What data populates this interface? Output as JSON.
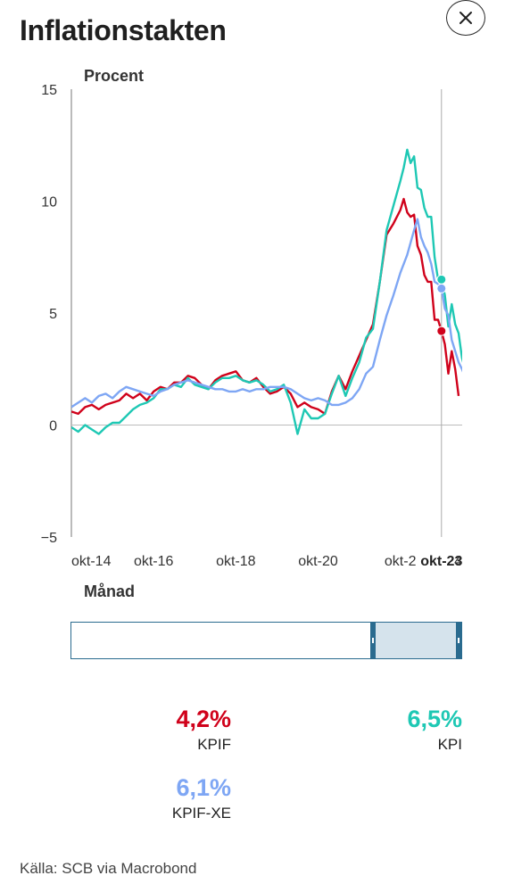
{
  "header": {
    "title": "Inflationstakten",
    "close_icon": "close-icon"
  },
  "chart_data": {
    "type": "line",
    "ylabel": "Procent",
    "xlabel": "Månad",
    "ylim": [
      -5,
      15
    ],
    "yticks": [
      15,
      10,
      5,
      0,
      -5
    ],
    "x_start": "2014-10",
    "x_end": "2024-03",
    "xticks": [
      {
        "label": "okt-14",
        "date": "2014-10",
        "bold": false
      },
      {
        "label": "okt-16",
        "date": "2016-10",
        "bold": false
      },
      {
        "label": "okt-18",
        "date": "2018-10",
        "bold": false
      },
      {
        "label": "okt-20",
        "date": "2020-10",
        "bold": false
      },
      {
        "label": "okt-2",
        "date": "2022-10",
        "bold": false
      },
      {
        "label": "okt-23",
        "date": "2023-10",
        "bold": true
      },
      {
        "label": "4",
        "date": "2024-03",
        "bold": false
      }
    ],
    "crosshair_date": "2023-10",
    "grid": false,
    "series": [
      {
        "name": "KPIF",
        "color": "#d0021b",
        "points": [
          [
            "2014-10",
            0.6
          ],
          [
            "2014-12",
            0.5
          ],
          [
            "2015-02",
            0.8
          ],
          [
            "2015-04",
            0.9
          ],
          [
            "2015-06",
            0.7
          ],
          [
            "2015-08",
            0.9
          ],
          [
            "2015-10",
            1.0
          ],
          [
            "2015-12",
            1.1
          ],
          [
            "2016-02",
            1.4
          ],
          [
            "2016-04",
            1.2
          ],
          [
            "2016-06",
            1.4
          ],
          [
            "2016-08",
            1.1
          ],
          [
            "2016-10",
            1.5
          ],
          [
            "2016-12",
            1.7
          ],
          [
            "2017-02",
            1.6
          ],
          [
            "2017-04",
            1.9
          ],
          [
            "2017-06",
            1.9
          ],
          [
            "2017-08",
            2.2
          ],
          [
            "2017-10",
            2.1
          ],
          [
            "2017-12",
            1.8
          ],
          [
            "2018-02",
            1.6
          ],
          [
            "2018-04",
            2.0
          ],
          [
            "2018-06",
            2.2
          ],
          [
            "2018-08",
            2.3
          ],
          [
            "2018-10",
            2.4
          ],
          [
            "2018-12",
            2.0
          ],
          [
            "2019-02",
            1.9
          ],
          [
            "2019-04",
            2.1
          ],
          [
            "2019-06",
            1.7
          ],
          [
            "2019-08",
            1.4
          ],
          [
            "2019-10",
            1.5
          ],
          [
            "2019-12",
            1.7
          ],
          [
            "2020-02",
            1.4
          ],
          [
            "2020-04",
            0.8
          ],
          [
            "2020-06",
            1.0
          ],
          [
            "2020-08",
            0.8
          ],
          [
            "2020-10",
            0.7
          ],
          [
            "2020-12",
            0.5
          ],
          [
            "2021-02",
            1.5
          ],
          [
            "2021-04",
            2.2
          ],
          [
            "2021-06",
            1.6
          ],
          [
            "2021-08",
            2.4
          ],
          [
            "2021-10",
            3.1
          ],
          [
            "2021-12",
            3.8
          ],
          [
            "2022-02",
            4.5
          ],
          [
            "2022-04",
            6.4
          ],
          [
            "2022-06",
            8.5
          ],
          [
            "2022-08",
            9.0
          ],
          [
            "2022-10",
            9.6
          ],
          [
            "2022-11",
            10.1
          ],
          [
            "2022-12",
            9.5
          ],
          [
            "2023-01",
            9.3
          ],
          [
            "2023-02",
            9.4
          ],
          [
            "2023-03",
            8.0
          ],
          [
            "2023-04",
            7.6
          ],
          [
            "2023-05",
            6.7
          ],
          [
            "2023-06",
            6.4
          ],
          [
            "2023-07",
            6.4
          ],
          [
            "2023-08",
            4.7
          ],
          [
            "2023-09",
            4.7
          ],
          [
            "2023-10",
            4.2
          ],
          [
            "2023-11",
            3.6
          ],
          [
            "2023-12",
            2.3
          ],
          [
            "2024-01",
            3.3
          ],
          [
            "2024-02",
            2.5
          ],
          [
            "2024-03",
            1.3
          ]
        ]
      },
      {
        "name": "KPI",
        "color": "#1ec8b4",
        "points": [
          [
            "2014-10",
            -0.1
          ],
          [
            "2014-12",
            -0.3
          ],
          [
            "2015-02",
            0.0
          ],
          [
            "2015-04",
            -0.2
          ],
          [
            "2015-06",
            -0.4
          ],
          [
            "2015-08",
            -0.1
          ],
          [
            "2015-10",
            0.1
          ],
          [
            "2015-12",
            0.1
          ],
          [
            "2016-02",
            0.4
          ],
          [
            "2016-04",
            0.7
          ],
          [
            "2016-06",
            0.9
          ],
          [
            "2016-08",
            1.0
          ],
          [
            "2016-10",
            1.2
          ],
          [
            "2016-12",
            1.6
          ],
          [
            "2017-02",
            1.6
          ],
          [
            "2017-04",
            1.8
          ],
          [
            "2017-06",
            1.7
          ],
          [
            "2017-08",
            2.1
          ],
          [
            "2017-10",
            1.8
          ],
          [
            "2017-12",
            1.7
          ],
          [
            "2018-02",
            1.6
          ],
          [
            "2018-04",
            1.9
          ],
          [
            "2018-06",
            2.1
          ],
          [
            "2018-08",
            2.1
          ],
          [
            "2018-10",
            2.2
          ],
          [
            "2018-12",
            2.0
          ],
          [
            "2019-02",
            1.9
          ],
          [
            "2019-04",
            2.0
          ],
          [
            "2019-06",
            1.8
          ],
          [
            "2019-08",
            1.5
          ],
          [
            "2019-10",
            1.6
          ],
          [
            "2019-12",
            1.8
          ],
          [
            "2020-02",
            1.0
          ],
          [
            "2020-04",
            -0.4
          ],
          [
            "2020-06",
            0.7
          ],
          [
            "2020-08",
            0.3
          ],
          [
            "2020-10",
            0.3
          ],
          [
            "2020-12",
            0.5
          ],
          [
            "2021-02",
            1.4
          ],
          [
            "2021-04",
            2.2
          ],
          [
            "2021-06",
            1.3
          ],
          [
            "2021-08",
            2.1
          ],
          [
            "2021-10",
            2.8
          ],
          [
            "2021-12",
            3.9
          ],
          [
            "2022-02",
            4.3
          ],
          [
            "2022-04",
            6.4
          ],
          [
            "2022-06",
            8.7
          ],
          [
            "2022-08",
            9.8
          ],
          [
            "2022-10",
            10.9
          ],
          [
            "2022-11",
            11.5
          ],
          [
            "2022-12",
            12.3
          ],
          [
            "2023-01",
            11.7
          ],
          [
            "2023-02",
            12.0
          ],
          [
            "2023-03",
            10.6
          ],
          [
            "2023-04",
            10.5
          ],
          [
            "2023-05",
            9.7
          ],
          [
            "2023-06",
            9.3
          ],
          [
            "2023-07",
            9.3
          ],
          [
            "2023-08",
            7.5
          ],
          [
            "2023-09",
            6.5
          ],
          [
            "2023-10",
            6.5
          ],
          [
            "2023-11",
            5.8
          ],
          [
            "2023-12",
            4.4
          ],
          [
            "2024-01",
            5.4
          ],
          [
            "2024-02",
            4.5
          ],
          [
            "2024-03",
            4.1
          ],
          [
            "2024-04",
            3.0
          ],
          [
            "2024-05",
            2.4
          ],
          [
            "2024-06",
            2.0
          ]
        ]
      },
      {
        "name": "KPIF-XE",
        "color": "#7ea6f4",
        "points": [
          [
            "2014-10",
            0.8
          ],
          [
            "2014-12",
            1.0
          ],
          [
            "2015-02",
            1.2
          ],
          [
            "2015-04",
            1.0
          ],
          [
            "2015-06",
            1.3
          ],
          [
            "2015-08",
            1.4
          ],
          [
            "2015-10",
            1.2
          ],
          [
            "2015-12",
            1.5
          ],
          [
            "2016-02",
            1.7
          ],
          [
            "2016-04",
            1.6
          ],
          [
            "2016-06",
            1.5
          ],
          [
            "2016-08",
            1.4
          ],
          [
            "2016-10",
            1.3
          ],
          [
            "2016-12",
            1.5
          ],
          [
            "2017-02",
            1.6
          ],
          [
            "2017-04",
            1.8
          ],
          [
            "2017-06",
            1.9
          ],
          [
            "2017-08",
            2.0
          ],
          [
            "2017-10",
            1.9
          ],
          [
            "2017-12",
            1.8
          ],
          [
            "2018-02",
            1.7
          ],
          [
            "2018-04",
            1.6
          ],
          [
            "2018-06",
            1.6
          ],
          [
            "2018-08",
            1.5
          ],
          [
            "2018-10",
            1.5
          ],
          [
            "2018-12",
            1.6
          ],
          [
            "2019-02",
            1.5
          ],
          [
            "2019-04",
            1.6
          ],
          [
            "2019-06",
            1.6
          ],
          [
            "2019-08",
            1.7
          ],
          [
            "2019-10",
            1.7
          ],
          [
            "2019-12",
            1.7
          ],
          [
            "2020-02",
            1.6
          ],
          [
            "2020-04",
            1.4
          ],
          [
            "2020-06",
            1.2
          ],
          [
            "2020-08",
            1.1
          ],
          [
            "2020-10",
            1.2
          ],
          [
            "2020-12",
            1.1
          ],
          [
            "2021-02",
            0.9
          ],
          [
            "2021-04",
            0.9
          ],
          [
            "2021-06",
            1.0
          ],
          [
            "2021-08",
            1.2
          ],
          [
            "2021-10",
            1.6
          ],
          [
            "2021-12",
            2.3
          ],
          [
            "2022-02",
            2.6
          ],
          [
            "2022-04",
            3.8
          ],
          [
            "2022-06",
            4.9
          ],
          [
            "2022-08",
            5.8
          ],
          [
            "2022-10",
            6.8
          ],
          [
            "2022-12",
            7.6
          ],
          [
            "2023-02",
            8.7
          ],
          [
            "2023-03",
            9.2
          ],
          [
            "2023-04",
            8.4
          ],
          [
            "2023-05",
            8.0
          ],
          [
            "2023-06",
            7.7
          ],
          [
            "2023-07",
            7.2
          ],
          [
            "2023-08",
            6.4
          ],
          [
            "2023-09",
            6.3
          ],
          [
            "2023-10",
            6.1
          ],
          [
            "2023-11",
            5.2
          ],
          [
            "2023-12",
            4.9
          ],
          [
            "2024-01",
            3.8
          ],
          [
            "2024-02",
            3.3
          ],
          [
            "2024-03",
            2.8
          ],
          [
            "2024-04",
            2.5
          ],
          [
            "2024-05",
            2.1
          ],
          [
            "2024-06",
            1.7
          ]
        ]
      }
    ]
  },
  "stats": [
    {
      "id": "kpif",
      "value": "4,2%",
      "label": "KPIF",
      "color": "#d0021b"
    },
    {
      "id": "kpi",
      "value": "6,5%",
      "label": "KPI",
      "color": "#1ec8b4"
    },
    {
      "id": "kpifxe",
      "value": "6,1%",
      "label": "KPIF-XE",
      "color": "#7ea6f4"
    }
  ],
  "footer": {
    "source": "Källa: SCB via Macrobond"
  }
}
